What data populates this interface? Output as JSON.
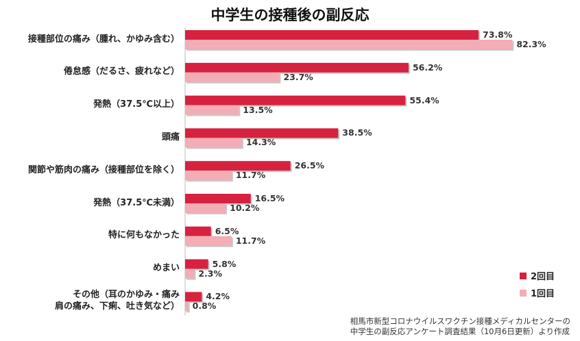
{
  "chart_data": {
    "type": "bar",
    "orientation": "horizontal",
    "title": "中学生の接種後の副反応",
    "categories": [
      "接種部位の痛み（腫れ、かゆみ含む）",
      "倦怠感（だるさ、疲れなど）",
      "発熱（37.5℃以上）",
      "頭痛",
      "関節や筋肉の痛み（接種部位を除く）",
      "発熱（37.5℃未満）",
      "特に何もなかった",
      "めまい",
      "その他（耳のかゆみ・痛み 肩の痛み、下痢、吐き気など）"
    ],
    "category_lines": [
      [
        "接種部位の痛み（腫れ、かゆみ含む）"
      ],
      [
        "倦怠感（だるさ、疲れなど）"
      ],
      [
        "発熱（37.5℃以上）"
      ],
      [
        "頭痛"
      ],
      [
        "関節や筋肉の痛み（接種部位を除く）"
      ],
      [
        "発熱（37.5℃未満）"
      ],
      [
        "特に何もなかった"
      ],
      [
        "めまい"
      ],
      [
        "その他（耳のかゆみ・痛み",
        "肩の痛み、下痢、吐き気など）"
      ]
    ],
    "series": [
      {
        "name": "2回目",
        "color": "#d6223f",
        "values": [
          73.8,
          56.2,
          55.4,
          38.5,
          26.5,
          16.5,
          6.5,
          5.8,
          4.2
        ],
        "labels": [
          "73.8%",
          "56.2%",
          "55.4%",
          "38.5%",
          "26.5%",
          "16.5%",
          "6.5%",
          "5.8%",
          "4.2%"
        ]
      },
      {
        "name": "1回目",
        "color": "#f2adb5",
        "values": [
          82.3,
          23.7,
          13.5,
          14.3,
          11.7,
          10.2,
          11.7,
          2.3,
          0.8
        ],
        "labels": [
          "82.3%",
          "23.7%",
          "13.5%",
          "14.3%",
          "11.7%",
          "10.2%",
          "11.7%",
          "2.3%",
          "0.8%"
        ]
      }
    ],
    "xlim": [
      0,
      100
    ],
    "grid": false,
    "legend_position": "bottom-right"
  },
  "source_lines": [
    "相馬市新型コロナウイルスワクチン接種メディカルセンターの",
    "中学生の副反応アンケート調査結果（10月6日更新）より作成"
  ]
}
